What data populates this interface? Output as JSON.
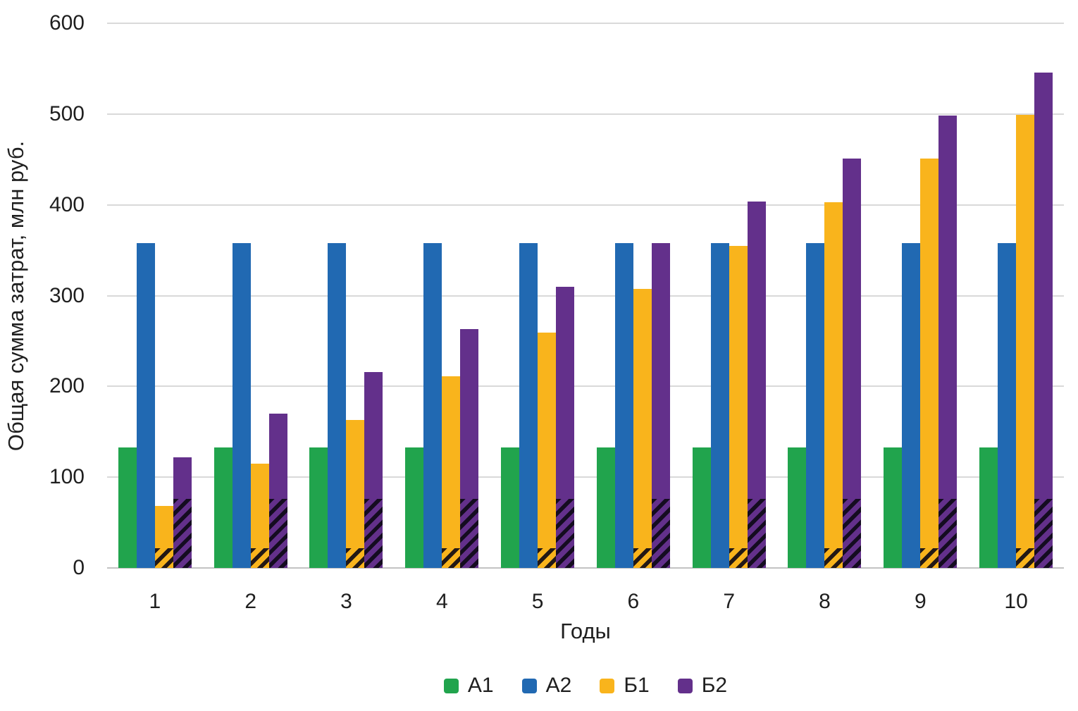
{
  "chart_data": {
    "type": "bar",
    "title": "",
    "xlabel": "Годы",
    "ylabel": "Общая сумма затрат, млн руб.",
    "categories": [
      "1",
      "2",
      "3",
      "4",
      "5",
      "6",
      "7",
      "8",
      "9",
      "10"
    ],
    "series": [
      {
        "name": "А1",
        "color": "#21A44D",
        "values": [
          133,
          133,
          133,
          133,
          133,
          133,
          133,
          133,
          133,
          133
        ]
      },
      {
        "name": "А2",
        "color": "#2169B2",
        "values": [
          358,
          358,
          358,
          358,
          358,
          358,
          358,
          358,
          358,
          358
        ]
      },
      {
        "name": "Б1",
        "color": "#F9B41C",
        "hatched_base_value": 22,
        "values": [
          68,
          115,
          163,
          211,
          259,
          307,
          355,
          403,
          451,
          499
        ]
      },
      {
        "name": "Б2",
        "color": "#63308B",
        "hatched_base_value": 76,
        "values": [
          122,
          170,
          216,
          263,
          310,
          358,
          404,
          451,
          498,
          546
        ]
      }
    ],
    "ylim": [
      0,
      600
    ],
    "y_ticks": [
      0,
      100,
      200,
      300,
      400,
      500,
      600
    ],
    "grid": "horizontal",
    "gridline_color": "#d9d9d9",
    "hatch_style": "black diagonal stripes over base segment of Б1 and Б2 bars",
    "legend_position": "bottom",
    "legend_labels": [
      "А1",
      "А2",
      "Б1",
      "Б2"
    ]
  }
}
